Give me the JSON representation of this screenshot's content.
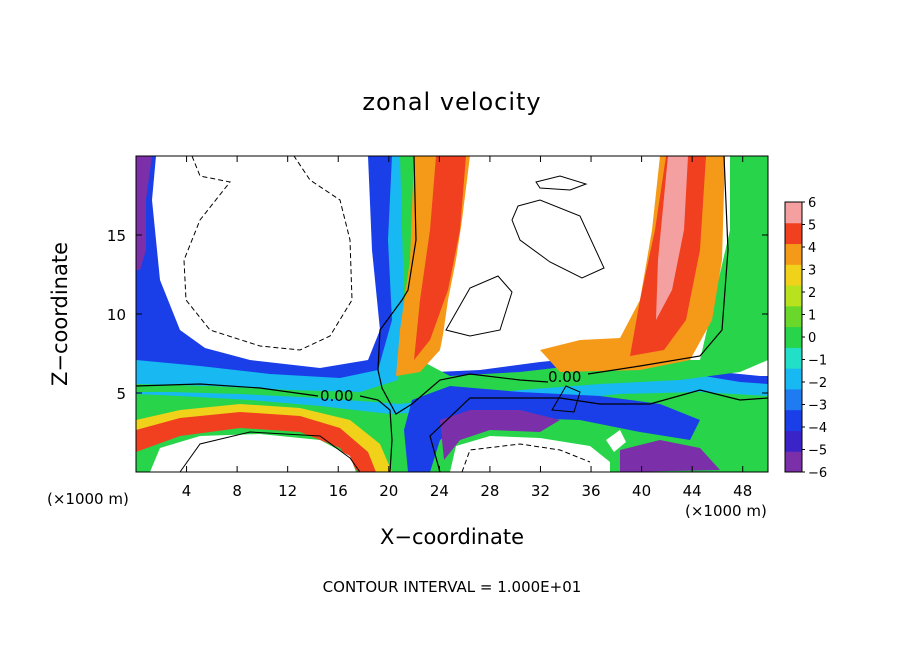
{
  "chart_data": {
    "type": "heatmap",
    "title": "zonal velocity",
    "xlabel": "X−coordinate",
    "ylabel": "Z−coordinate",
    "x_unit_left": "(×1000 m)",
    "x_unit_right": "(×1000 m)",
    "xlim": [
      0,
      50
    ],
    "ylim": [
      0,
      20
    ],
    "x_ticks": [
      4,
      8,
      12,
      16,
      20,
      24,
      28,
      32,
      36,
      40,
      44,
      48
    ],
    "x_tick_labels": [
      "4",
      "8",
      "12",
      "16",
      "20",
      "24",
      "28",
      "32",
      "36",
      "40",
      "44",
      "48"
    ],
    "y_ticks": [
      5,
      10,
      15
    ],
    "y_tick_labels": [
      "5",
      "10",
      "15"
    ],
    "colorbar": {
      "min": -6,
      "max": 6,
      "levels": [
        -6,
        -5,
        -4,
        -3,
        -2,
        -1,
        0,
        1,
        2,
        3,
        4,
        5,
        6
      ],
      "labels": [
        "−6",
        "−5",
        "−4",
        "−3",
        "−2",
        "−1",
        "0",
        "1",
        "2",
        "3",
        "4",
        "5",
        "6"
      ],
      "colors": [
        "#7b2fa8",
        "#3a24c8",
        "#1a3fe8",
        "#1e7cf0",
        "#18b8f2",
        "#22e0c8",
        "#28d44a",
        "#6ad82a",
        "#b8e21e",
        "#f0d21a",
        "#f59a18",
        "#f04020",
        "#f4a0a0"
      ]
    },
    "contour_label": "0.00",
    "contour_label_2": "0.00",
    "contour_interval": "CONTOUR INTERVAL =  1.000E+01"
  }
}
